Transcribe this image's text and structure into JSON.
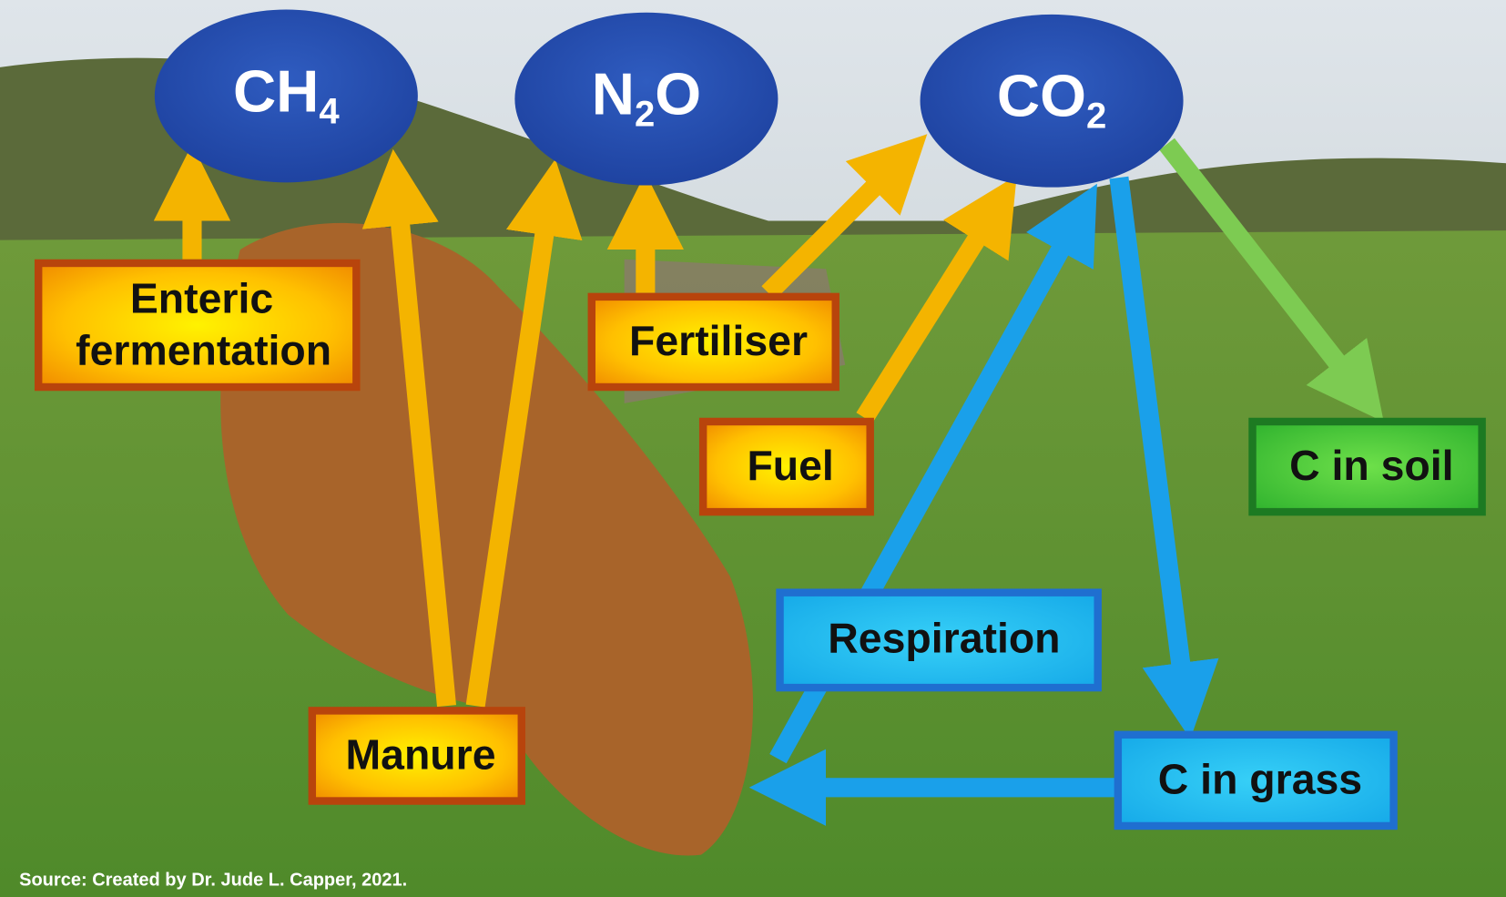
{
  "gases": [
    {
      "parts": [
        "CH",
        "4"
      ]
    },
    {
      "parts": [
        "N",
        "2",
        "O"
      ]
    },
    {
      "parts": [
        "CO",
        "2"
      ]
    }
  ],
  "sources": [
    "Enteric",
    "fermentation",
    "Fertiliser",
    "Fuel",
    "Manure"
  ],
  "carbon": [
    "Respiration",
    "C in grass",
    "C in soil"
  ],
  "source_note": "Source: Created by Dr. Jude L. Capper, 2021."
}
